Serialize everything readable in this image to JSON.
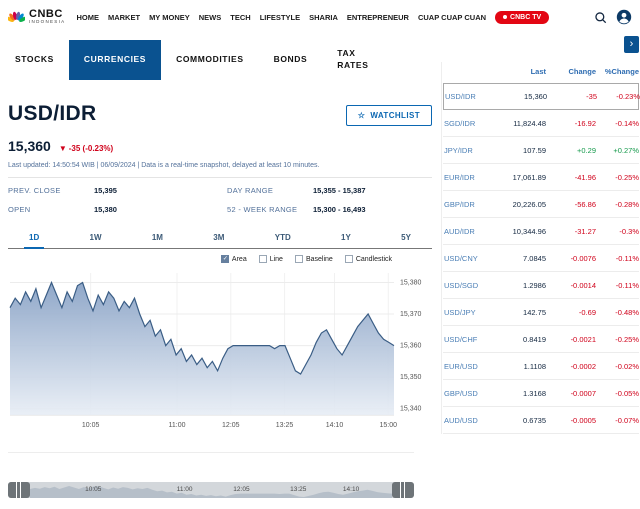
{
  "colors": {
    "accent_blue": "#0a5290",
    "link_blue": "#4a7eb5",
    "negative": "#d0021b",
    "positive": "#169a4c",
    "brand_red": "#e30613"
  },
  "icons": {
    "star": "☆",
    "chevron_right": "›",
    "down_arrow": "▼"
  },
  "header": {
    "logo": {
      "brand": "CNBC",
      "sub": "INDONESIA"
    },
    "nav": [
      "HOME",
      "MARKET",
      "MY MONEY",
      "NEWS",
      "TECH",
      "LIFESTYLE",
      "SHARIA",
      "ENTREPRENEUR",
      "CUAP CUAP CUAN"
    ],
    "tv_button": "CNBC TV"
  },
  "tabs": [
    {
      "label": "STOCKS",
      "active": false
    },
    {
      "label": "CURRENCIES",
      "active": true
    },
    {
      "label": "COMMODITIES",
      "active": false
    },
    {
      "label": "BONDS",
      "active": false
    },
    {
      "label": "TAX\nRATES",
      "active": false
    }
  ],
  "quote": {
    "symbol": "USD/IDR",
    "watchlist_label": "WATCHLIST",
    "last": "15,360",
    "change_arrow": "▼",
    "change": "-35 (-0.23%)",
    "updated": "Last updated: 14:50:54 WIB | 06/09/2024 | Data is a real-time snapshot, delayed at least 10 minutes.",
    "stats": [
      {
        "label": "PREV. CLOSE",
        "value": "15,395"
      },
      {
        "label": "DAY RANGE",
        "value": "15,355 - 15,387"
      },
      {
        "label": "OPEN",
        "value": "15,380"
      },
      {
        "label": "52 - WEEK RANGE",
        "value": "15,300 - 16,493"
      }
    ]
  },
  "range_tabs": [
    {
      "label": "1D",
      "active": true
    },
    {
      "label": "1W",
      "active": false
    },
    {
      "label": "1M",
      "active": false
    },
    {
      "label": "3M",
      "active": false
    },
    {
      "label": "YTD",
      "active": false
    },
    {
      "label": "1Y",
      "active": false
    },
    {
      "label": "5Y",
      "active": false
    }
  ],
  "chart_types": [
    {
      "label": "Area",
      "checked": true
    },
    {
      "label": "Line",
      "checked": false
    },
    {
      "label": "Baseline",
      "checked": false
    },
    {
      "label": "Candlestick",
      "checked": false
    }
  ],
  "chart_data": {
    "type": "area",
    "title": "USD/IDR intraday",
    "grid": true,
    "legend_position": "top-right",
    "ylim": [
      15338,
      15383
    ],
    "y_ticks": [
      {
        "v": 15340,
        "label": "15,340"
      },
      {
        "v": 15350,
        "label": "15,350"
      },
      {
        "v": 15360,
        "label": "15,360"
      },
      {
        "v": 15370,
        "label": "15,370"
      },
      {
        "v": 15380,
        "label": "15,380"
      }
    ],
    "x_ticks": [
      {
        "pos": 0.21,
        "label": "10:05"
      },
      {
        "pos": 0.435,
        "label": "11:00"
      },
      {
        "pos": 0.575,
        "label": "12:05"
      },
      {
        "pos": 0.715,
        "label": "13:25"
      },
      {
        "pos": 0.845,
        "label": "14:10"
      },
      {
        "pos": 0.985,
        "label": "15:00"
      }
    ],
    "navigator_ticks": [
      {
        "pos": 0.21,
        "label": "10:05"
      },
      {
        "pos": 0.435,
        "label": "11:00"
      },
      {
        "pos": 0.575,
        "label": "12:05"
      },
      {
        "pos": 0.715,
        "label": "13:25"
      },
      {
        "pos": 0.845,
        "label": "14:10"
      }
    ],
    "values": [
      15372,
      15375,
      15373,
      15377,
      15374,
      15378,
      15372,
      15376,
      15380,
      15376,
      15372,
      15377,
      15374,
      15379,
      15380,
      15375,
      15371,
      15376,
      15373,
      15377,
      15375,
      15371,
      15374,
      15372,
      15375,
      15370,
      15366,
      15368,
      15363,
      15365,
      15360,
      15362,
      15357,
      15359,
      15355,
      15357,
      15354,
      15356,
      15353,
      15355,
      15352,
      15356,
      15359,
      15360,
      15360,
      15360,
      15360,
      15360,
      15360,
      15360,
      15360,
      15359,
      15360,
      15360,
      15356,
      15352,
      15351,
      15354,
      15357,
      15361,
      15364,
      15365,
      15362,
      15359,
      15357,
      15360,
      15363,
      15366,
      15368,
      15370,
      15367,
      15364,
      15362,
      15361,
      15360
    ]
  },
  "table": {
    "headers": [
      "Last",
      "Change",
      "%Change"
    ],
    "rows": [
      {
        "pair": "USD/IDR",
        "last": "15,360",
        "change": "-35",
        "pct": "-0.23%",
        "dir": "neg",
        "selected": true
      },
      {
        "pair": "SGD/IDR",
        "last": "11,824.48",
        "change": "-16.92",
        "pct": "-0.14%",
        "dir": "neg",
        "selected": false
      },
      {
        "pair": "JPY/IDR",
        "last": "107.59",
        "change": "+0.29",
        "pct": "+0.27%",
        "dir": "pos",
        "selected": false
      },
      {
        "pair": "EUR/IDR",
        "last": "17,061.89",
        "change": "-41.96",
        "pct": "-0.25%",
        "dir": "neg",
        "selected": false
      },
      {
        "pair": "GBP/IDR",
        "last": "20,226.05",
        "change": "-56.86",
        "pct": "-0.28%",
        "dir": "neg",
        "selected": false
      },
      {
        "pair": "AUD/IDR",
        "last": "10,344.96",
        "change": "-31.27",
        "pct": "-0.3%",
        "dir": "neg",
        "selected": false
      },
      {
        "pair": "USD/CNY",
        "last": "7.0845",
        "change": "-0.0076",
        "pct": "-0.11%",
        "dir": "neg",
        "selected": false
      },
      {
        "pair": "USD/SGD",
        "last": "1.2986",
        "change": "-0.0014",
        "pct": "-0.11%",
        "dir": "neg",
        "selected": false
      },
      {
        "pair": "USD/JPY",
        "last": "142.75",
        "change": "-0.69",
        "pct": "-0.48%",
        "dir": "neg",
        "selected": false
      },
      {
        "pair": "USD/CHF",
        "last": "0.8419",
        "change": "-0.0021",
        "pct": "-0.25%",
        "dir": "neg",
        "selected": false
      },
      {
        "pair": "EUR/USD",
        "last": "1.1108",
        "change": "-0.0002",
        "pct": "-0.02%",
        "dir": "neg",
        "selected": false
      },
      {
        "pair": "GBP/USD",
        "last": "1.3168",
        "change": "-0.0007",
        "pct": "-0.05%",
        "dir": "neg",
        "selected": false
      },
      {
        "pair": "AUD/USD",
        "last": "0.6735",
        "change": "-0.0005",
        "pct": "-0.07%",
        "dir": "neg",
        "selected": false
      }
    ]
  }
}
